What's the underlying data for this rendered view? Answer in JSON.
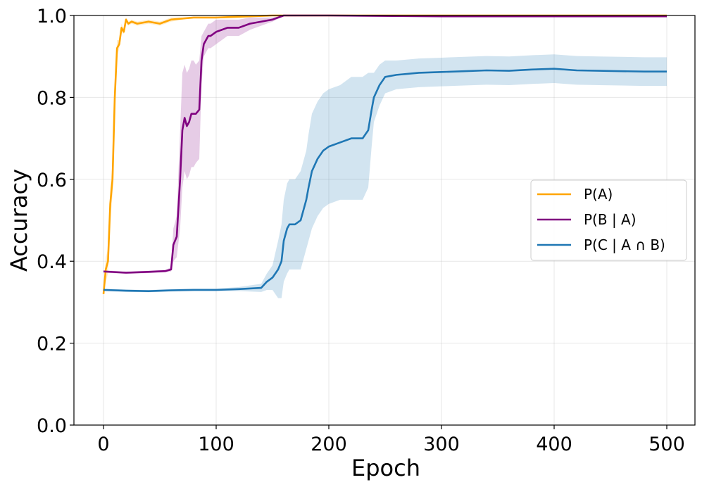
{
  "chart_data": {
    "type": "line",
    "title": "",
    "xlabel": "Epoch",
    "ylabel": "Accuracy",
    "xlim": [
      -7,
      524
    ],
    "ylim": [
      0.0,
      1.0
    ],
    "x_ticks": [
      0,
      100,
      200,
      300,
      400,
      500
    ],
    "y_ticks": [
      0.0,
      0.2,
      0.4,
      0.6,
      0.8,
      1.0
    ],
    "x_tick_labels": [
      "0",
      "100",
      "200",
      "300",
      "400",
      "500"
    ],
    "y_tick_labels": [
      "0.0",
      "0.2",
      "0.4",
      "0.6",
      "0.8",
      "1.0"
    ],
    "grid": true,
    "legend_position": "center-right",
    "series": [
      {
        "name": "P(A)",
        "color": "#ffa500",
        "x": [
          0,
          2,
          4,
          6,
          8,
          10,
          12,
          14,
          16,
          18,
          20,
          22,
          25,
          30,
          40,
          50,
          60,
          80,
          100,
          150,
          200,
          300,
          400,
          500
        ],
        "y": [
          0.32,
          0.38,
          0.4,
          0.54,
          0.6,
          0.8,
          0.92,
          0.93,
          0.97,
          0.96,
          0.99,
          0.98,
          0.985,
          0.98,
          0.985,
          0.98,
          0.99,
          0.995,
          0.995,
          1.0,
          1.0,
          1.0,
          1.0,
          1.0
        ],
        "band": [
          0.0,
          0.03,
          0.03,
          0.04,
          0.04,
          0.03,
          0.02,
          0.01,
          0.01,
          0.005,
          0.005,
          0.005,
          0.005,
          0.005,
          0.005,
          0.005,
          0.005,
          0.0,
          0.0,
          0.0,
          0.0,
          0.0,
          0.0,
          0.0
        ]
      },
      {
        "name": "P(B | A)",
        "color": "#800080",
        "x": [
          0,
          20,
          40,
          55,
          60,
          62,
          65,
          68,
          70,
          72,
          74,
          76,
          78,
          80,
          82,
          85,
          87,
          89,
          91,
          93,
          95,
          100,
          110,
          120,
          130,
          140,
          150,
          160,
          170,
          200,
          300,
          400,
          500
        ],
        "y": [
          0.375,
          0.372,
          0.374,
          0.376,
          0.38,
          0.44,
          0.46,
          0.6,
          0.72,
          0.75,
          0.73,
          0.74,
          0.76,
          0.76,
          0.76,
          0.77,
          0.89,
          0.93,
          0.94,
          0.95,
          0.95,
          0.96,
          0.97,
          0.97,
          0.98,
          0.985,
          0.99,
          1.0,
          1.0,
          1.0,
          0.998,
          0.998,
          0.998
        ],
        "band": [
          0.003,
          0.003,
          0.003,
          0.003,
          0.005,
          0.04,
          0.05,
          0.12,
          0.14,
          0.13,
          0.13,
          0.13,
          0.13,
          0.13,
          0.12,
          0.12,
          0.06,
          0.03,
          0.03,
          0.03,
          0.03,
          0.03,
          0.02,
          0.02,
          0.015,
          0.01,
          0.005,
          0.002,
          0.002,
          0.0,
          0.0,
          0.0,
          0.0
        ]
      },
      {
        "name": "P(C | A ∩ B)",
        "color": "#1f77b4",
        "x": [
          0,
          20,
          40,
          60,
          80,
          100,
          120,
          140,
          145,
          150,
          155,
          158,
          160,
          163,
          165,
          170,
          175,
          180,
          182,
          185,
          190,
          195,
          200,
          210,
          220,
          230,
          235,
          238,
          240,
          245,
          250,
          260,
          280,
          300,
          320,
          340,
          360,
          380,
          400,
          420,
          440,
          460,
          480,
          500
        ],
        "y": [
          0.33,
          0.328,
          0.327,
          0.329,
          0.33,
          0.33,
          0.332,
          0.335,
          0.35,
          0.36,
          0.38,
          0.4,
          0.45,
          0.48,
          0.49,
          0.49,
          0.5,
          0.55,
          0.58,
          0.62,
          0.65,
          0.67,
          0.68,
          0.69,
          0.7,
          0.7,
          0.72,
          0.77,
          0.8,
          0.83,
          0.85,
          0.855,
          0.86,
          0.862,
          0.864,
          0.866,
          0.865,
          0.868,
          0.87,
          0.866,
          0.865,
          0.864,
          0.863,
          0.863
        ],
        "band": [
          0.003,
          0.003,
          0.003,
          0.003,
          0.003,
          0.003,
          0.005,
          0.01,
          0.02,
          0.03,
          0.07,
          0.09,
          0.1,
          0.11,
          0.11,
          0.11,
          0.12,
          0.12,
          0.13,
          0.14,
          0.14,
          0.14,
          0.14,
          0.14,
          0.15,
          0.15,
          0.14,
          0.09,
          0.06,
          0.05,
          0.04,
          0.035,
          0.035,
          0.035,
          0.035,
          0.035,
          0.035,
          0.035,
          0.035,
          0.035,
          0.035,
          0.035,
          0.035,
          0.035
        ]
      }
    ]
  }
}
